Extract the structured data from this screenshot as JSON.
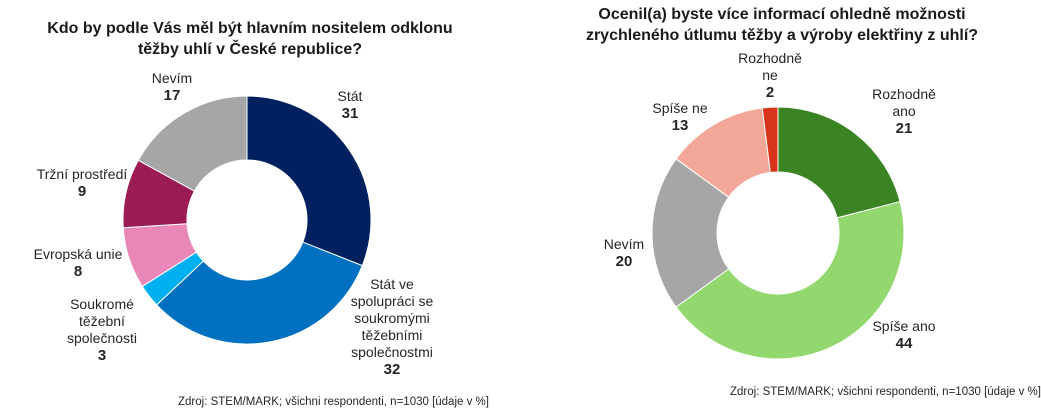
{
  "chart_data": [
    {
      "type": "pie",
      "title": "Kdo by podle Vás měl být hlavním nositelem odklonu těžby uhlí v České republice?",
      "source": "Zdroj: STEM/MARK; všichni respondenti, n=1030 [údaje v %]",
      "slices": [
        {
          "label": "Stát",
          "value": 31,
          "color": "#002060"
        },
        {
          "label": "Stát ve spolupráci se soukromými těžebními společnostmi",
          "value": 32,
          "color": "#0070C0"
        },
        {
          "label": "Soukromé těžební společnosti",
          "value": 3,
          "color": "#00B0F0"
        },
        {
          "label": "Evropská unie",
          "value": 8,
          "color": "#E887B8"
        },
        {
          "label": "Tržní prostředí",
          "value": 9,
          "color": "#9B1B56"
        },
        {
          "label": "Nevím",
          "value": 17,
          "color": "#A6A6A6"
        }
      ]
    },
    {
      "type": "pie",
      "title": "Ocenil(a) byste více informací ohledně možnosti zrychleného útlumu těžby a výroby elektřiny z uhlí?",
      "source": "Zdroj: STEM/MARK; všichni respondenti, n=1030 [údaje v %]",
      "slices": [
        {
          "label": "Rozhodně ano",
          "value": 21,
          "color": "#3A8424"
        },
        {
          "label": "Spíše ano",
          "value": 44,
          "color": "#92D86F"
        },
        {
          "label": "Nevím",
          "value": 20,
          "color": "#A6A6A6"
        },
        {
          "label": "Spíše ne",
          "value": 13,
          "color": "#F2A799"
        },
        {
          "label": "Rozhodně ne",
          "value": 2,
          "color": "#D7341B"
        }
      ]
    }
  ]
}
